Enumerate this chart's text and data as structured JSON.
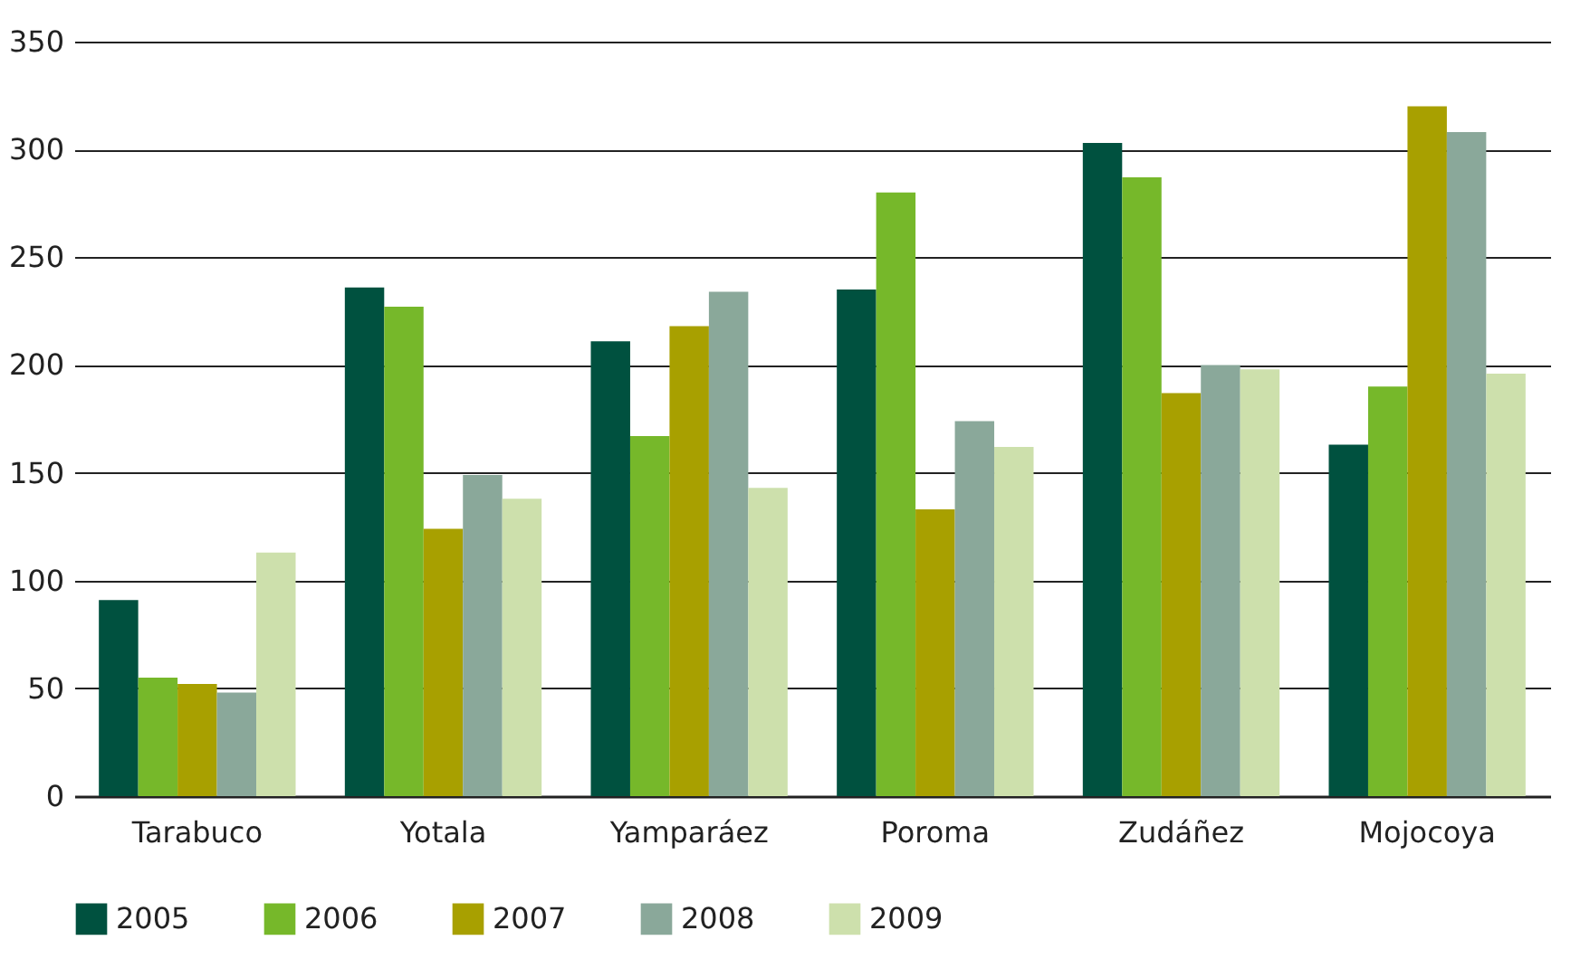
{
  "chart_data": {
    "type": "bar",
    "categories": [
      "Tarabuco",
      "Yotala",
      "Yamparáez",
      "Poroma",
      "Zudáñez",
      "Mojocoya"
    ],
    "series": [
      {
        "name": "2005",
        "color": "#00513f",
        "values": [
          91,
          236,
          211,
          235,
          303,
          163
        ]
      },
      {
        "name": "2006",
        "color": "#76b82a",
        "values": [
          55,
          227,
          167,
          280,
          287,
          190
        ]
      },
      {
        "name": "2007",
        "color": "#a8a000",
        "values": [
          52,
          124,
          218,
          133,
          187,
          320
        ]
      },
      {
        "name": "2008",
        "color": "#8aa89a",
        "values": [
          48,
          149,
          234,
          174,
          200,
          308
        ]
      },
      {
        "name": "2009",
        "color": "#cde0ac",
        "values": [
          113,
          138,
          143,
          162,
          198,
          196
        ]
      }
    ],
    "ylim": [
      0,
      350
    ],
    "yticks": [
      0,
      50,
      100,
      150,
      200,
      250,
      300,
      350
    ],
    "grid": "y",
    "legend": "bottom"
  }
}
